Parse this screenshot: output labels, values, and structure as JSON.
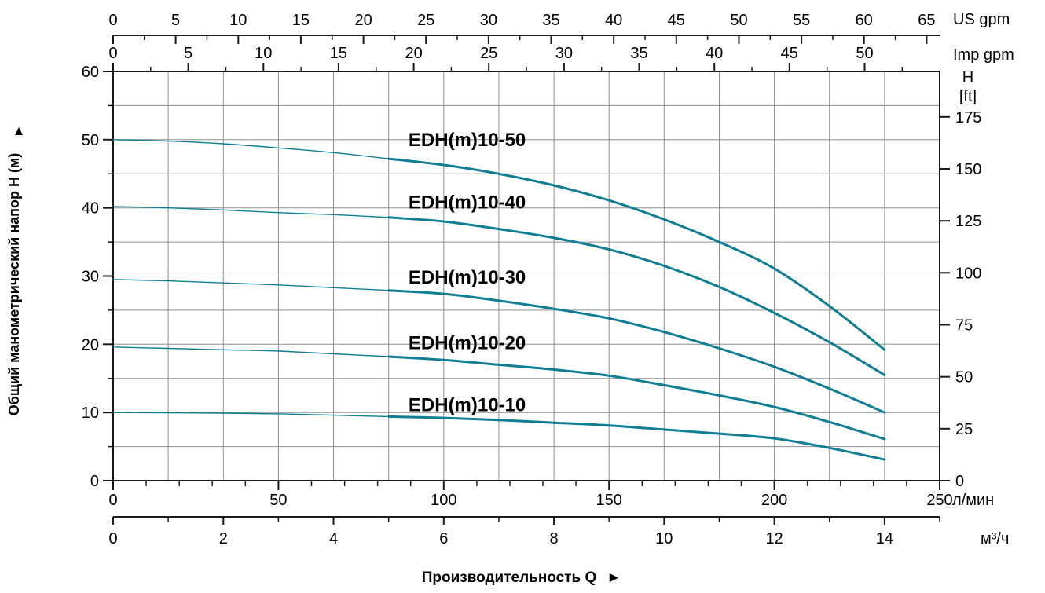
{
  "chart_data": {
    "type": "line",
    "xlabel": "Производительность Q",
    "xlabel_arrow": "►",
    "ylabel": "Общий манометрический напор H (м)",
    "ylabel_arrow": "▲",
    "axes": {
      "us_gpm": {
        "unit": "US gpm",
        "ticks": [
          0,
          5,
          10,
          15,
          20,
          25,
          30,
          35,
          40,
          45,
          50,
          55,
          60,
          65
        ],
        "minor_step": 2.5,
        "lmin_per_unit": 3.78541
      },
      "imp_gpm": {
        "unit": "Imp gpm",
        "ticks": [
          0,
          5,
          10,
          15,
          20,
          25,
          30,
          35,
          40,
          45,
          50
        ],
        "minor_step": 2.5,
        "lmin_per_unit": 4.54609
      },
      "h_m": {
        "ticks": [
          0,
          10,
          20,
          30,
          40,
          50,
          60
        ],
        "minor_step": 5,
        "max": 60
      },
      "h_ft": {
        "header_line1": "H",
        "header_line2": "[ft]",
        "ticks": [
          0,
          25,
          50,
          75,
          100,
          125,
          150,
          175
        ],
        "m_per_ft": 0.3048
      },
      "lmin": {
        "unit": "л/мин",
        "ticks": [
          0,
          50,
          100,
          150,
          200,
          250
        ],
        "minor_step": 10,
        "max": 250
      },
      "m3h": {
        "unit": "м³/ч",
        "ticks": [
          0,
          2,
          4,
          6,
          8,
          10,
          12,
          14
        ],
        "minor_step": 1,
        "max": 15
      }
    },
    "grid": {
      "x_step_m3h": 1,
      "y_step_m": 5
    },
    "duty_range_start_m3h": 5,
    "series": [
      {
        "name": "EDH(m)10-50",
        "label_anchor": [
          5.36,
          50.0
        ],
        "points": [
          [
            0,
            50.0
          ],
          [
            1,
            49.8
          ],
          [
            2,
            49.4
          ],
          [
            3,
            48.8
          ],
          [
            4,
            48.1
          ],
          [
            5,
            47.2
          ],
          [
            6,
            46.3
          ],
          [
            7,
            45.0
          ],
          [
            8,
            43.3
          ],
          [
            9,
            41.1
          ],
          [
            10,
            38.3
          ],
          [
            11,
            35.0
          ],
          [
            12,
            31.1
          ],
          [
            13,
            25.6
          ],
          [
            14,
            19.2
          ]
        ]
      },
      {
        "name": "EDH(m)10-40",
        "label_anchor": [
          5.36,
          40.8
        ],
        "points": [
          [
            0,
            40.2
          ],
          [
            1,
            40.0
          ],
          [
            2,
            39.7
          ],
          [
            3,
            39.3
          ],
          [
            4,
            39.0
          ],
          [
            5,
            38.6
          ],
          [
            6,
            38.0
          ],
          [
            7,
            36.9
          ],
          [
            8,
            35.6
          ],
          [
            9,
            33.9
          ],
          [
            10,
            31.5
          ],
          [
            11,
            28.4
          ],
          [
            12,
            24.6
          ],
          [
            13,
            20.3
          ],
          [
            14,
            15.5
          ]
        ]
      },
      {
        "name": "EDH(m)10-30",
        "label_anchor": [
          5.36,
          29.8
        ],
        "points": [
          [
            0,
            29.5
          ],
          [
            1,
            29.3
          ],
          [
            2,
            29.0
          ],
          [
            3,
            28.7
          ],
          [
            4,
            28.3
          ],
          [
            5,
            27.9
          ],
          [
            6,
            27.4
          ],
          [
            7,
            26.4
          ],
          [
            8,
            25.2
          ],
          [
            9,
            23.8
          ],
          [
            10,
            21.8
          ],
          [
            11,
            19.4
          ],
          [
            12,
            16.7
          ],
          [
            13,
            13.5
          ],
          [
            14,
            10.0
          ]
        ]
      },
      {
        "name": "EDH(m)10-20",
        "label_anchor": [
          5.36,
          20.2
        ],
        "points": [
          [
            0,
            19.6
          ],
          [
            1,
            19.4
          ],
          [
            2,
            19.2
          ],
          [
            3,
            19.0
          ],
          [
            4,
            18.6
          ],
          [
            5,
            18.2
          ],
          [
            6,
            17.7
          ],
          [
            7,
            17.0
          ],
          [
            8,
            16.3
          ],
          [
            9,
            15.4
          ],
          [
            10,
            14.0
          ],
          [
            11,
            12.5
          ],
          [
            12,
            10.8
          ],
          [
            13,
            8.6
          ],
          [
            14,
            6.1
          ]
        ]
      },
      {
        "name": "EDH(m)10-10",
        "label_anchor": [
          5.36,
          11.1
        ],
        "points": [
          [
            0,
            10.0
          ],
          [
            1,
            9.95
          ],
          [
            2,
            9.9
          ],
          [
            3,
            9.8
          ],
          [
            4,
            9.6
          ],
          [
            5,
            9.4
          ],
          [
            6,
            9.2
          ],
          [
            7,
            8.9
          ],
          [
            8,
            8.5
          ],
          [
            9,
            8.1
          ],
          [
            10,
            7.5
          ],
          [
            11,
            6.9
          ],
          [
            12,
            6.2
          ],
          [
            13,
            4.8
          ],
          [
            14,
            3.1
          ]
        ]
      }
    ],
    "style": {
      "curve_color": "#0f7d93",
      "grid_color": "#8f8f8f",
      "axis_color": "#1a1a1a",
      "text_color": "#000000",
      "background": "#ffffff"
    }
  }
}
